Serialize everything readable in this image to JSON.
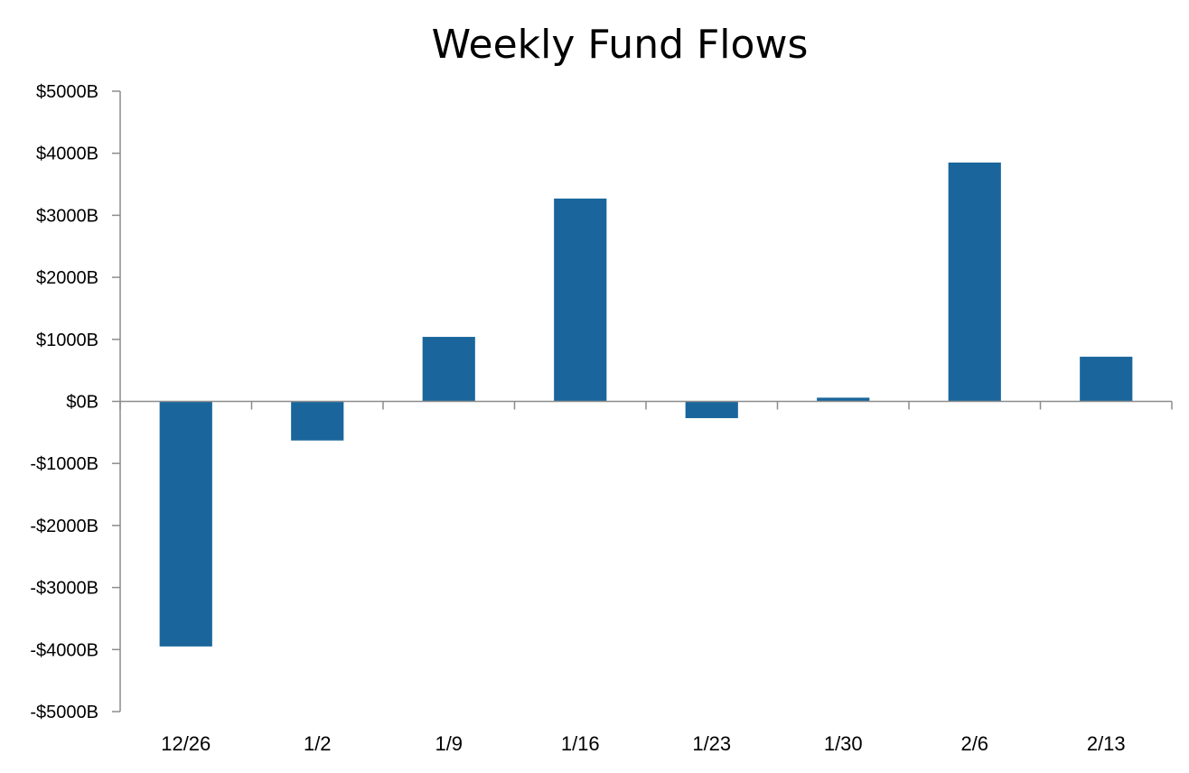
{
  "chart_data": {
    "type": "bar",
    "title": "Weekly Fund Flows",
    "xlabel": "",
    "ylabel": "",
    "categories": [
      "12/26",
      "1/2",
      "1/9",
      "1/16",
      "1/23",
      "1/30",
      "2/6",
      "2/13"
    ],
    "values": [
      -3950,
      -630,
      1040,
      3270,
      -270,
      60,
      3850,
      720
    ],
    "ylim": [
      -5000,
      5000
    ],
    "yticks": [
      5000,
      4000,
      3000,
      2000,
      1000,
      0,
      -1000,
      -2000,
      -3000,
      -4000,
      -5000
    ],
    "ytick_labels": [
      "$5000B",
      "$4000B",
      "$3000B",
      "$2000B",
      "$1000B",
      "$0B",
      "-$1000B",
      "-$2000B",
      "-$3000B",
      "-$4000B",
      "-$5000B"
    ],
    "bar_color": "#1a669c",
    "grid": false,
    "legend": "none"
  }
}
